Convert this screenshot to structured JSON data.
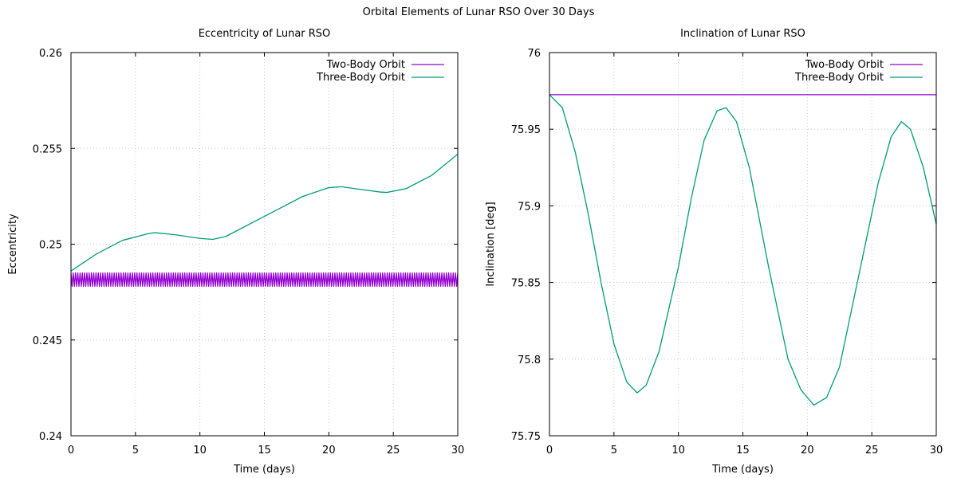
{
  "figure": {
    "title": "Orbital Elements of Lunar RSO Over 30 Days"
  },
  "colors": {
    "two_body": "#9400d3",
    "three_body": "#009e73",
    "grid": "#c8c8c8",
    "frame": "#000000"
  },
  "chart_data": [
    {
      "type": "line",
      "title": "Eccentricity of Lunar RSO",
      "xlabel": "Time (days)",
      "ylabel": "Eccentricity",
      "xlim": [
        0,
        30
      ],
      "ylim": [
        0.24,
        0.26
      ],
      "xticks": [
        0,
        5,
        10,
        15,
        20,
        25,
        30
      ],
      "xtick_labels": [
        "0",
        "5",
        "10",
        "15",
        "20",
        "25",
        "30"
      ],
      "yticks": [
        0.24,
        0.245,
        0.25,
        0.255,
        0.26
      ],
      "ytick_labels": [
        "0.24",
        "0.245",
        "0.25",
        "0.255",
        "0.26"
      ],
      "grid": true,
      "legend": "top-right",
      "series": [
        {
          "name": "Two-Body Orbit",
          "color": "#9400d3",
          "style": "oscillating-band",
          "x": [
            0,
            30
          ],
          "y": [
            0.2481,
            0.2481
          ],
          "band": [
            0.2478,
            0.2485
          ],
          "cycles": 170
        },
        {
          "name": "Three-Body Orbit",
          "color": "#009e73",
          "x": [
            0,
            2,
            4,
            6,
            6.5,
            8,
            10,
            11,
            12,
            14,
            16,
            18,
            20,
            21,
            22,
            24,
            24.5,
            26,
            28,
            30
          ],
          "y": [
            0.2486,
            0.2495,
            0.2502,
            0.25055,
            0.2506,
            0.2505,
            0.2503,
            0.25025,
            0.2504,
            0.2511,
            0.2518,
            0.2525,
            0.25295,
            0.253,
            0.2529,
            0.25272,
            0.2527,
            0.2529,
            0.2536,
            0.2547
          ]
        }
      ]
    },
    {
      "type": "line",
      "title": "Inclination of Lunar RSO",
      "xlabel": "Time (days)",
      "ylabel": "Inclination [deg]",
      "xlim": [
        0,
        30
      ],
      "ylim": [
        75.75,
        76
      ],
      "xticks": [
        0,
        5,
        10,
        15,
        20,
        25,
        30
      ],
      "xtick_labels": [
        "0",
        "5",
        "10",
        "15",
        "20",
        "25",
        "30"
      ],
      "yticks": [
        75.75,
        75.8,
        75.85,
        75.9,
        75.95,
        76
      ],
      "ytick_labels": [
        "75.75",
        "75.8",
        "75.85",
        "75.9",
        "75.95",
        "76"
      ],
      "grid": true,
      "legend": "top-right",
      "series": [
        {
          "name": "Two-Body Orbit",
          "color": "#9400d3",
          "x": [
            0,
            30
          ],
          "y": [
            75.9725,
            75.9725
          ]
        },
        {
          "name": "Three-Body Orbit",
          "color": "#009e73",
          "x": [
            0,
            1,
            2,
            3,
            4,
            5,
            6,
            6.8,
            7.5,
            8.5,
            10,
            11,
            12,
            13,
            13.7,
            14.5,
            15.5,
            17,
            18.5,
            19.5,
            20.5,
            21.5,
            22.5,
            24,
            25.5,
            26.5,
            27.3,
            28,
            29,
            30
          ],
          "y": [
            75.9725,
            75.964,
            75.935,
            75.895,
            75.85,
            75.81,
            75.785,
            75.778,
            75.783,
            75.805,
            75.86,
            75.905,
            75.943,
            75.962,
            75.964,
            75.955,
            75.925,
            75.86,
            75.8,
            75.78,
            75.77,
            75.775,
            75.795,
            75.855,
            75.915,
            75.945,
            75.955,
            75.95,
            75.925,
            75.888
          ]
        }
      ]
    }
  ]
}
